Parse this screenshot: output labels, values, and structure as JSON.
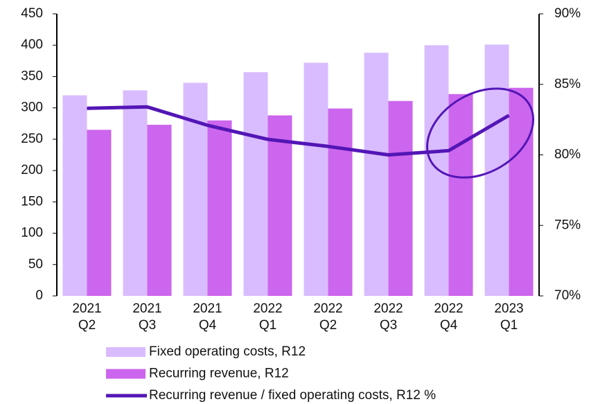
{
  "chart_data": {
    "type": "bar_line",
    "categories": [
      [
        "2021",
        "Q2"
      ],
      [
        "2021",
        "Q3"
      ],
      [
        "2021",
        "Q4"
      ],
      [
        "2022",
        "Q1"
      ],
      [
        "2022",
        "Q2"
      ],
      [
        "2022",
        "Q3"
      ],
      [
        "2022",
        "Q4"
      ],
      [
        "2023",
        "Q1"
      ]
    ],
    "series": [
      {
        "name": "Fixed operating costs, R12",
        "type": "bar",
        "color": "#d9bcff",
        "values": [
          320,
          328,
          340,
          357,
          372,
          388,
          400,
          401
        ]
      },
      {
        "name": "Recurring revenue, R12",
        "type": "bar",
        "color": "#cc66ee",
        "values": [
          265,
          273,
          280,
          288,
          299,
          311,
          322,
          332
        ]
      },
      {
        "name": "Recurring revenue / fixed operating costs, R12 %",
        "type": "line",
        "axis": "y2",
        "color": "#5316b5",
        "values": [
          83.3,
          83.4,
          82.1,
          81.1,
          80.6,
          80.0,
          80.3,
          82.8
        ]
      }
    ],
    "ylim": [
      0,
      450
    ],
    "yticks": [
      0,
      50,
      100,
      150,
      200,
      250,
      300,
      350,
      400,
      450
    ],
    "y2lim": [
      70,
      90
    ],
    "y2ticks": [
      {
        "value": 70,
        "label": "70%"
      },
      {
        "value": 75,
        "label": "75%"
      },
      {
        "value": 80,
        "label": "80%"
      },
      {
        "value": 85,
        "label": "85%"
      },
      {
        "value": 90,
        "label": "90%"
      }
    ],
    "legend": "bottom"
  }
}
